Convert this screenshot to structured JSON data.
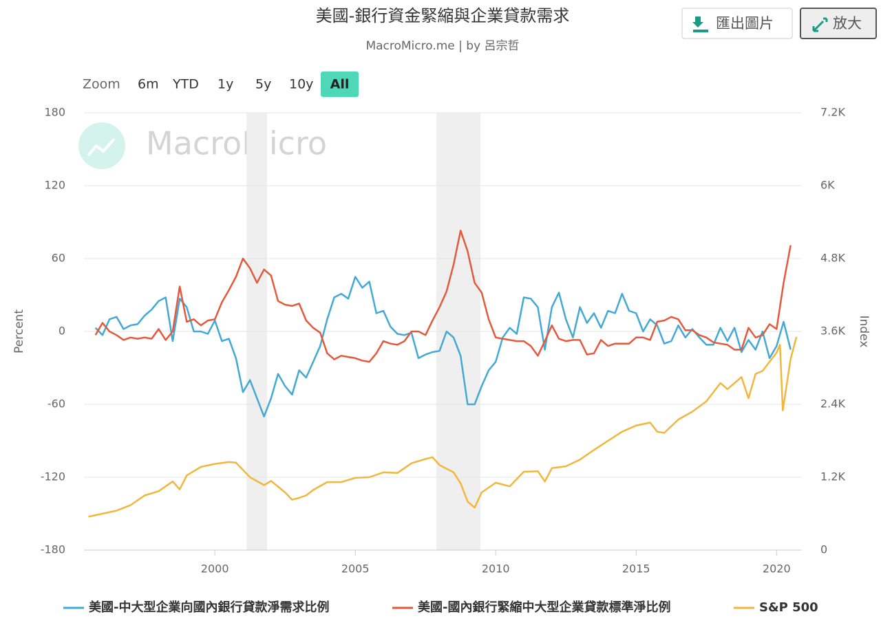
{
  "header": {
    "title": "美國-銀行資金緊縮與企業貸款需求",
    "subtitle": "MacroMicro.me | by 呂宗哲"
  },
  "buttons": {
    "export": "匯出圖片",
    "enlarge": "放大"
  },
  "zoom": {
    "label": "Zoom",
    "options": [
      "6m",
      "YTD",
      "1y",
      "5y",
      "10y",
      "All"
    ],
    "selected_index": 5
  },
  "watermark": "MacroMicro",
  "chart_data": {
    "type": "line",
    "ylabel": "Percent",
    "y2label": "Index",
    "xlim": [
      1995.34,
      2020.9
    ],
    "xticks": [
      2000,
      2005,
      2010,
      2015,
      2020
    ],
    "ylim": [
      -180,
      180
    ],
    "yticks": [
      180,
      120,
      60,
      0,
      -60,
      -120,
      -180
    ],
    "y2lim": [
      0,
      7200
    ],
    "y2ticks": [
      {
        "value": 7200,
        "label": "7.2K"
      },
      {
        "value": 6000,
        "label": "6K"
      },
      {
        "value": 4800,
        "label": "4.8K"
      },
      {
        "value": 3600,
        "label": "3.6K"
      },
      {
        "value": 2400,
        "label": "2.4K"
      },
      {
        "value": 1200,
        "label": "1.2K"
      },
      0
    ],
    "grid": true,
    "shaded_ranges": [
      [
        2001.13,
        2001.86
      ],
      [
        2007.89,
        2009.46
      ]
    ],
    "series": [
      {
        "name": "美國-中大型企業向國內銀行貸款淨需求比例",
        "color": "#42a8d4",
        "x": [
          1995.75,
          1996,
          1996.25,
          1996.5,
          1996.75,
          1997,
          1997.25,
          1997.5,
          1997.75,
          1998,
          1998.25,
          1998.5,
          1998.75,
          1999,
          1999.25,
          1999.5,
          1999.75,
          2000,
          2000.25,
          2000.5,
          2000.75,
          2001,
          2001.25,
          2001.5,
          2001.75,
          2002,
          2002.25,
          2002.5,
          2002.75,
          2003,
          2003.25,
          2003.5,
          2003.75,
          2004,
          2004.25,
          2004.5,
          2004.75,
          2005,
          2005.25,
          2005.5,
          2005.75,
          2006,
          2006.25,
          2006.5,
          2006.75,
          2007,
          2007.25,
          2007.5,
          2007.75,
          2008,
          2008.25,
          2008.5,
          2008.75,
          2009,
          2009.25,
          2009.5,
          2009.75,
          2010,
          2010.25,
          2010.5,
          2010.75,
          2011,
          2011.25,
          2011.5,
          2011.75,
          2012,
          2012.25,
          2012.5,
          2012.75,
          2013,
          2013.25,
          2013.5,
          2013.75,
          2014,
          2014.25,
          2014.5,
          2014.75,
          2015,
          2015.25,
          2015.5,
          2015.75,
          2016,
          2016.25,
          2016.5,
          2016.75,
          2017,
          2017.25,
          2017.5,
          2017.75,
          2018,
          2018.25,
          2018.5,
          2018.75,
          2019,
          2019.25,
          2019.5,
          2019.75,
          2020,
          2020.25,
          2020.5
        ],
        "values": [
          3,
          -3,
          10,
          12,
          2,
          5,
          6,
          13,
          18,
          25,
          28,
          -8,
          27,
          20,
          0,
          0,
          -2,
          9,
          -8,
          -6,
          -22,
          -50,
          -40,
          -55,
          -70,
          -55,
          -35,
          -45,
          -52,
          -32,
          -38,
          -25,
          -12,
          10,
          28,
          31,
          27,
          45,
          36,
          41,
          15,
          17,
          4,
          -2,
          -3,
          -1,
          -22,
          -19,
          -17,
          -16,
          0,
          -5,
          -20,
          -60,
          -60,
          -45,
          -32,
          -25,
          -5,
          3,
          -2,
          28,
          27,
          20,
          -15,
          20,
          32,
          10,
          -5,
          20,
          7,
          15,
          3,
          17,
          15,
          31,
          17,
          15,
          0,
          10,
          5,
          -10,
          -8,
          5,
          -5,
          2,
          -5,
          -11,
          -11,
          3,
          -8,
          3,
          -17,
          -7,
          -15,
          0,
          -22,
          -12,
          8,
          -15
        ]
      },
      {
        "name": "美國-國內銀行緊縮中大型企業貸款標準淨比例",
        "color": "#e4593b",
        "x": [
          1995.75,
          1996,
          1996.25,
          1996.5,
          1996.75,
          1997,
          1997.25,
          1997.5,
          1997.75,
          1998,
          1998.25,
          1998.5,
          1998.75,
          1999,
          1999.25,
          1999.5,
          1999.75,
          2000,
          2000.25,
          2000.5,
          2000.75,
          2001,
          2001.25,
          2001.5,
          2001.75,
          2002,
          2002.25,
          2002.5,
          2002.75,
          2003,
          2003.25,
          2003.5,
          2003.75,
          2004,
          2004.25,
          2004.5,
          2004.75,
          2005,
          2005.25,
          2005.5,
          2005.75,
          2006,
          2006.25,
          2006.5,
          2006.75,
          2007,
          2007.25,
          2007.5,
          2007.75,
          2008,
          2008.25,
          2008.5,
          2008.75,
          2009,
          2009.25,
          2009.5,
          2009.75,
          2010,
          2010.25,
          2010.5,
          2010.75,
          2011,
          2011.25,
          2011.5,
          2011.75,
          2012,
          2012.25,
          2012.5,
          2012.75,
          2013,
          2013.25,
          2013.5,
          2013.75,
          2014,
          2014.25,
          2014.5,
          2014.75,
          2015,
          2015.25,
          2015.5,
          2015.75,
          2016,
          2016.25,
          2016.5,
          2016.75,
          2017,
          2017.25,
          2017.5,
          2017.75,
          2018,
          2018.25,
          2018.5,
          2018.75,
          2019,
          2019.25,
          2019.5,
          2019.75,
          2020,
          2020.25,
          2020.5
        ],
        "values": [
          -3,
          7,
          0,
          -3,
          -7,
          -5,
          -6,
          -5,
          -6,
          2,
          -7,
          0,
          37,
          8,
          10,
          5,
          9,
          10,
          24,
          34,
          45,
          60,
          52,
          40,
          51,
          46,
          25,
          22,
          21,
          23,
          9,
          3,
          -1,
          -18,
          -23,
          -20,
          -21,
          -22,
          -24,
          -25,
          -18,
          -8,
          -10,
          -11,
          -8,
          0,
          0,
          -3,
          9,
          20,
          33,
          55,
          83,
          66,
          40,
          32,
          10,
          -5,
          -6,
          -7,
          -8,
          -8,
          -12,
          -20,
          -8,
          5,
          -6,
          -8,
          -7,
          -7,
          -19,
          -18,
          -7,
          -12,
          -10,
          -10,
          -10,
          -5,
          -5,
          -7,
          8,
          9,
          12,
          10,
          1,
          1,
          -3,
          -5,
          -9,
          -10,
          -11,
          -15,
          -15,
          3,
          -5,
          -3,
          6,
          2,
          40,
          71
        ]
      },
      {
        "name": "S&P 500",
        "color": "#f0b73c",
        "axis": "y2",
        "x": [
          1995.5,
          1996,
          1996.5,
          1997,
          1997.5,
          1998,
          1998.5,
          1998.75,
          1999,
          1999.5,
          2000,
          2000.5,
          2000.75,
          2001,
          2001.25,
          2001.75,
          2002,
          2002.5,
          2002.75,
          2003,
          2003.25,
          2003.5,
          2004,
          2004.5,
          2005,
          2005.5,
          2006,
          2006.5,
          2007,
          2007.5,
          2007.75,
          2008,
          2008.5,
          2008.75,
          2009,
          2009.25,
          2009.5,
          2010,
          2010.5,
          2011,
          2011.5,
          2011.75,
          2012,
          2012.5,
          2013,
          2013.5,
          2014,
          2014.5,
          2015,
          2015.5,
          2015.75,
          2016,
          2016.5,
          2017,
          2017.5,
          2018,
          2018.25,
          2018.75,
          2019,
          2019.25,
          2019.5,
          2020,
          2020.12,
          2020.22,
          2020.5,
          2020.71
        ],
        "values": [
          550,
          600,
          650,
          740,
          900,
          970,
          1130,
          1000,
          1230,
          1370,
          1420,
          1450,
          1440,
          1320,
          1200,
          1070,
          1140,
          950,
          830,
          860,
          900,
          990,
          1120,
          1120,
          1190,
          1200,
          1280,
          1270,
          1430,
          1500,
          1530,
          1400,
          1280,
          1100,
          800,
          700,
          950,
          1110,
          1050,
          1290,
          1300,
          1130,
          1350,
          1380,
          1490,
          1650,
          1800,
          1950,
          2050,
          2100,
          1950,
          1930,
          2150,
          2280,
          2450,
          2750,
          2650,
          2850,
          2500,
          2900,
          2950,
          3250,
          3380,
          2300,
          3150,
          3510
        ]
      }
    ]
  }
}
